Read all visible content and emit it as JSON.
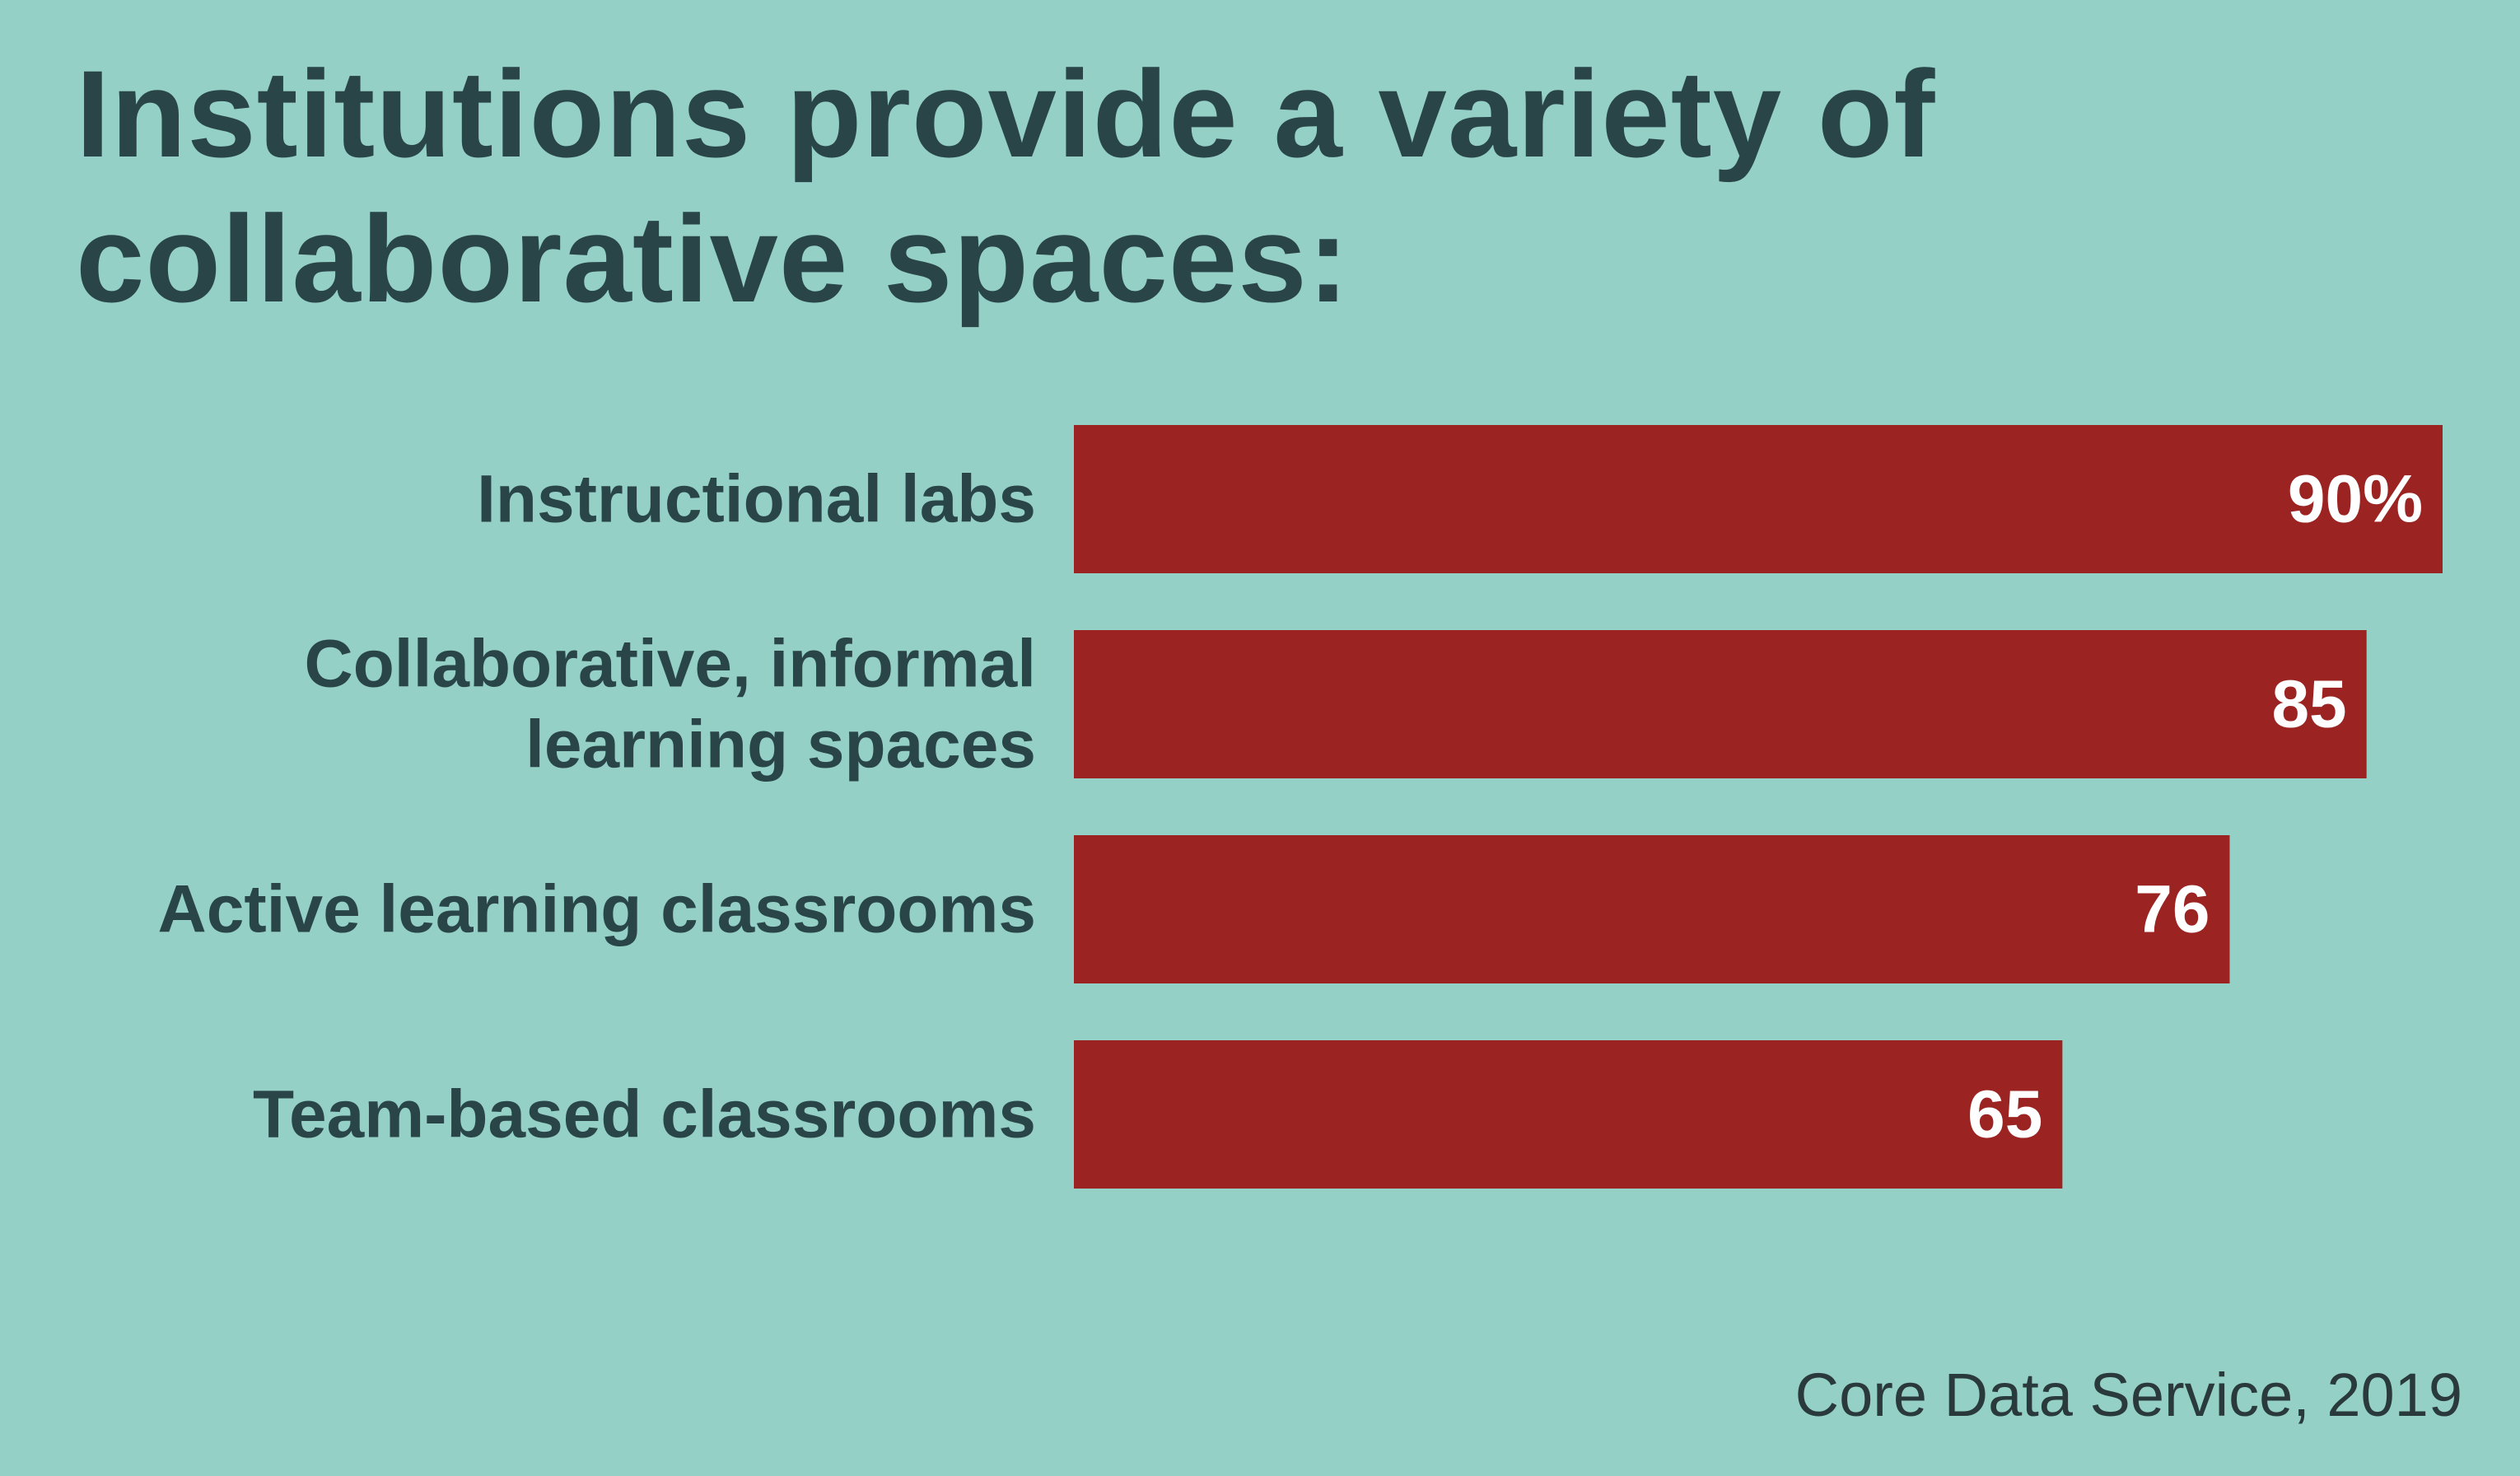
{
  "chart_data": {
    "type": "bar",
    "orientation": "horizontal",
    "title": "Institutions provide a variety of collaborative spaces:",
    "categories": [
      [
        "Instructional labs"
      ],
      [
        "Collaborative, informal",
        "learning spaces"
      ],
      [
        "Active learning classrooms"
      ],
      [
        "Team-based classrooms"
      ]
    ],
    "values": [
      90,
      85,
      76,
      65
    ],
    "value_labels": [
      "90%",
      "85",
      "76",
      "65"
    ],
    "unit": "%",
    "xlim": [
      0,
      90
    ],
    "grid": false,
    "source": "Core Data Service, 2019",
    "colors": {
      "background": "#94d0c5",
      "bar": "#9b2422",
      "text": "#2a4548",
      "value_text": "#ffffff"
    }
  }
}
